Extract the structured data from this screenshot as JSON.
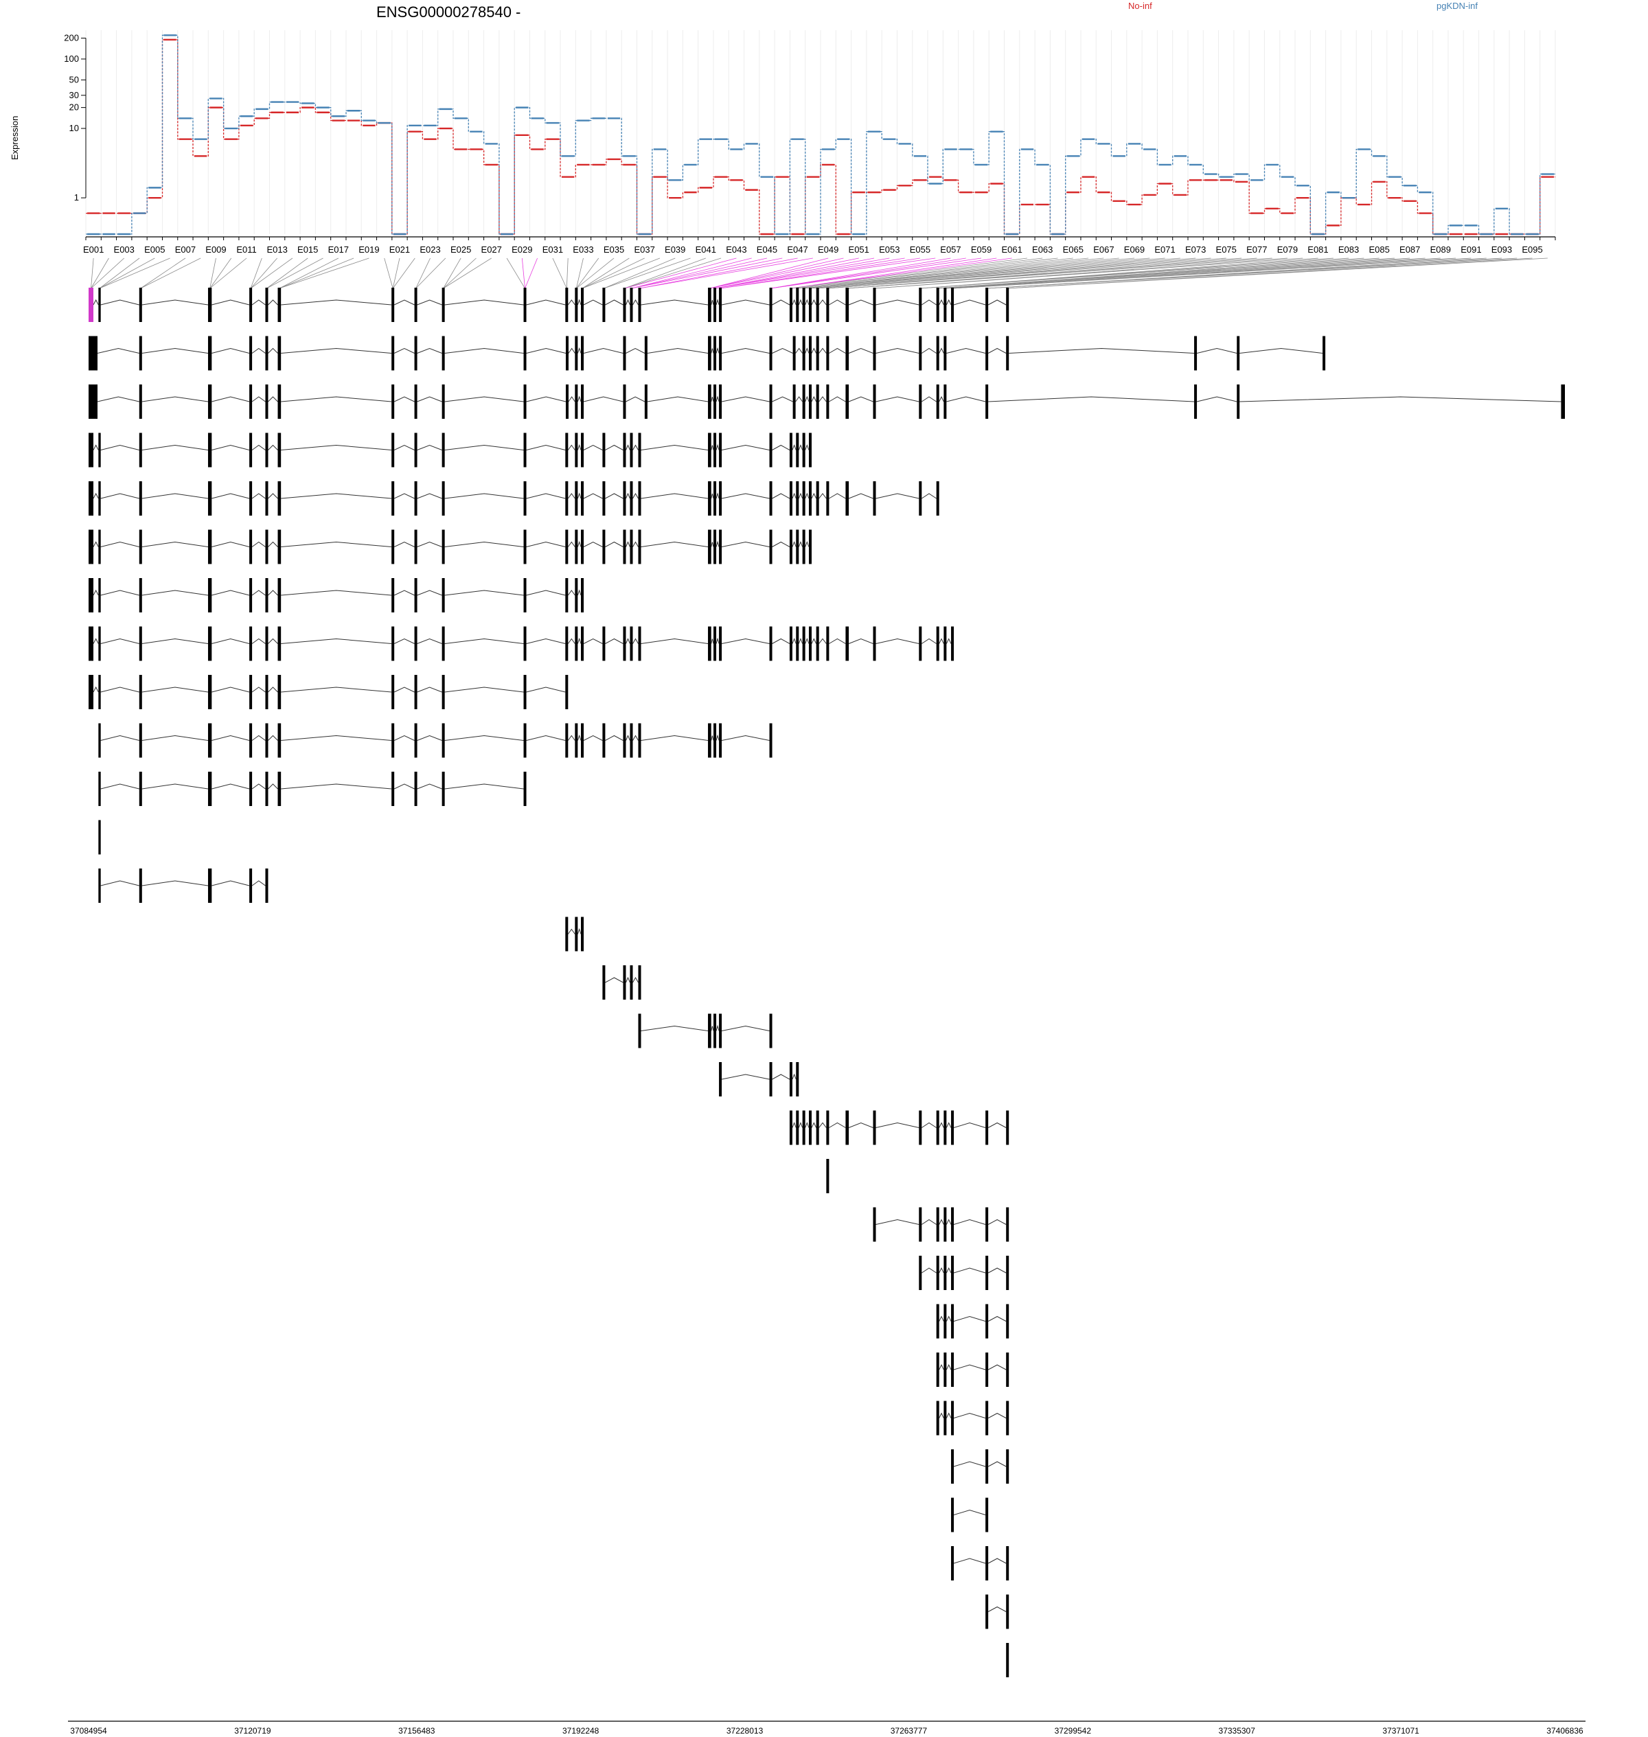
{
  "chart_data": {
    "type": "line",
    "title": "ENSG00000278540 -",
    "ylabel": "Expression",
    "y_scale": "log",
    "y_ticks": [
      1,
      10,
      20,
      30,
      50,
      100,
      200
    ],
    "ylim": [
      0.3,
      260
    ],
    "legend": "top",
    "grid": false,
    "colors": {
      "No-inf": "#d62728",
      "pgKDN-inf": "#4682b4",
      "highlight": "#e83fe0"
    },
    "series": [
      {
        "name": "No-inf",
        "values": [
          0.6,
          0.6,
          0.6,
          0.6,
          1.0,
          190,
          7,
          4,
          20,
          7,
          11,
          14,
          17,
          17,
          20,
          17,
          13,
          13,
          11,
          12,
          0.3,
          9,
          7,
          10,
          5,
          5,
          3,
          0.3,
          8,
          5,
          7,
          2,
          3,
          3,
          3.6,
          3,
          0.3,
          2,
          1,
          1.2,
          1.4,
          2,
          1.8,
          1.3,
          0.3,
          2,
          0.3,
          2,
          3,
          0.3,
          1.2,
          1.2,
          1.3,
          1.5,
          1.8,
          2,
          1.8,
          1.2,
          1.2,
          1.6,
          0.3,
          0.8,
          0.8,
          0.3,
          1.2,
          2,
          1.2,
          0.9,
          0.8,
          1.1,
          1.6,
          1.1,
          1.8,
          1.8,
          1.8,
          1.7,
          0.6,
          0.7,
          0.6,
          1.0,
          0.3,
          0.4,
          1.0,
          0.8,
          1.7,
          1.0,
          0.9,
          0.6,
          0.3,
          0.3,
          0.3,
          0.3,
          0.3,
          0.3,
          0.3,
          2.0
        ]
      },
      {
        "name": "pgKDN-inf",
        "values": [
          0.3,
          0.3,
          0.3,
          0.6,
          1.4,
          220,
          14,
          7,
          27,
          10,
          15,
          19,
          24,
          24,
          23,
          20,
          15,
          18,
          13,
          12,
          0.3,
          11,
          11,
          19,
          14,
          9,
          6,
          0.3,
          20,
          14,
          12,
          4,
          13,
          14,
          14,
          4,
          0.3,
          5,
          1.8,
          3,
          7,
          7,
          5,
          6,
          2,
          0.3,
          7,
          0.3,
          5,
          7,
          0.3,
          9,
          7,
          6,
          4,
          1.6,
          5,
          5,
          3,
          9,
          0.3,
          5,
          3,
          0.3,
          4,
          7,
          6,
          4,
          6,
          5,
          3,
          4,
          3,
          2.2,
          2,
          2.2,
          1.8,
          3,
          2,
          1.5,
          0.3,
          1.2,
          1.0,
          5,
          4,
          2,
          1.5,
          1.2,
          0.3,
          0.4,
          0.4,
          0.3,
          0.7,
          0.3,
          0.3,
          2.2
        ]
      }
    ],
    "exon_labels": [
      "E001",
      "E003",
      "E005",
      "E007",
      "E009",
      "E011",
      "E013",
      "E015",
      "E017",
      "E019",
      "E021",
      "E023",
      "E025",
      "E027",
      "E029",
      "E031",
      "E033",
      "E035",
      "E037",
      "E039",
      "E041",
      "E043",
      "E045",
      "E047",
      "E049",
      "E051",
      "E053",
      "E055",
      "E057",
      "E059",
      "E061",
      "E063",
      "E065",
      "E067",
      "E069",
      "E071",
      "E073",
      "E075",
      "E077",
      "E079",
      "E081",
      "E083",
      "E085",
      "E087",
      "E089",
      "E091",
      "E093",
      "E095"
    ],
    "x_coordinate_labels": [
      "37084954",
      "37120719",
      "37156483",
      "37192248",
      "37228013",
      "37263777",
      "37299542",
      "37335307",
      "37371071",
      "37406836"
    ],
    "transcripts": [
      [
        [
          37084954,
          37086000,
          "thick"
        ],
        [
          37087100,
          37087600
        ],
        [
          37096000,
          37096600
        ],
        [
          37111000,
          37111800
        ],
        [
          37120000,
          37120600
        ],
        [
          37123500,
          37124100
        ],
        [
          37126200,
          37126900
        ],
        [
          37151000,
          37151600
        ],
        [
          37156000,
          37156600
        ],
        [
          37162000,
          37162600
        ],
        [
          37179800,
          37180400
        ],
        [
          37188900,
          37189500
        ],
        [
          37191000,
          37191600
        ],
        [
          37192300,
          37192900
        ],
        [
          37197000,
          37197600
        ],
        [
          37201500,
          37202100
        ],
        [
          37203000,
          37203600
        ],
        [
          37204800,
          37205400
        ],
        [
          37220000,
          37220700
        ],
        [
          37221200,
          37221800
        ],
        [
          37222400,
          37223000
        ],
        [
          37233400,
          37234000
        ],
        [
          37237800,
          37238400
        ],
        [
          37239200,
          37239800
        ],
        [
          37240600,
          37241200
        ],
        [
          37242000,
          37242600
        ],
        [
          37243600,
          37244200
        ],
        [
          37245800,
          37246400
        ],
        [
          37250000,
          37250700
        ],
        [
          37256000,
          37256600
        ],
        [
          37266000,
          37266600
        ],
        [
          37269800,
          37270400
        ],
        [
          37271400,
          37272000
        ],
        [
          37273000,
          37273600
        ],
        [
          37280500,
          37281100
        ],
        [
          37285000,
          37285600
        ]
      ],
      [
        [
          37084954,
          37086900,
          "thick"
        ],
        [
          37096000,
          37096600
        ],
        [
          37111000,
          37111800
        ],
        [
          37120000,
          37120600
        ],
        [
          37123500,
          37124100
        ],
        [
          37126200,
          37126900
        ],
        [
          37151000,
          37151600
        ],
        [
          37156000,
          37156600
        ],
        [
          37162000,
          37162600
        ],
        [
          37179800,
          37180400
        ],
        [
          37189000,
          37189600
        ],
        [
          37191000,
          37191600
        ],
        [
          37192300,
          37192900
        ],
        [
          37201500,
          37202100
        ],
        [
          37206200,
          37206800
        ],
        [
          37220000,
          37220700
        ],
        [
          37221200,
          37221800
        ],
        [
          37222400,
          37223000
        ],
        [
          37233400,
          37234000
        ],
        [
          37238500,
          37239100
        ],
        [
          37240600,
          37241200
        ],
        [
          37242000,
          37242600
        ],
        [
          37243600,
          37244200
        ],
        [
          37245800,
          37246400
        ],
        [
          37250000,
          37250700
        ],
        [
          37256000,
          37256600
        ],
        [
          37266000,
          37266600
        ],
        [
          37269800,
          37270400
        ],
        [
          37271400,
          37272000
        ],
        [
          37280500,
          37281100
        ],
        [
          37285000,
          37285600
        ],
        [
          37326000,
          37326600
        ],
        [
          37335307,
          37335900
        ],
        [
          37354000,
          37354600
        ]
      ],
      [
        [
          37084954,
          37086900,
          "thick"
        ],
        [
          37096000,
          37096600
        ],
        [
          37111000,
          37111800
        ],
        [
          37120000,
          37120600
        ],
        [
          37123500,
          37124100
        ],
        [
          37126200,
          37126900
        ],
        [
          37151000,
          37151600
        ],
        [
          37156000,
          37156600
        ],
        [
          37162000,
          37162600
        ],
        [
          37179800,
          37180400
        ],
        [
          37189000,
          37189600
        ],
        [
          37191000,
          37191600
        ],
        [
          37192300,
          37192900
        ],
        [
          37201500,
          37202100
        ],
        [
          37206200,
          37206800
        ],
        [
          37220000,
          37220700
        ],
        [
          37221200,
          37221800
        ],
        [
          37222400,
          37223000
        ],
        [
          37233400,
          37234000
        ],
        [
          37238500,
          37239100
        ],
        [
          37240600,
          37241200
        ],
        [
          37242000,
          37242600
        ],
        [
          37243600,
          37244200
        ],
        [
          37245800,
          37246400
        ],
        [
          37250000,
          37250700
        ],
        [
          37256000,
          37256600
        ],
        [
          37266000,
          37266600
        ],
        [
          37269800,
          37270400
        ],
        [
          37271400,
          37272000
        ],
        [
          37280500,
          37281100
        ],
        [
          37326000,
          37326600
        ],
        [
          37335307,
          37335900
        ],
        [
          37406000,
          37406836,
          "thick"
        ]
      ]
    ]
  }
}
